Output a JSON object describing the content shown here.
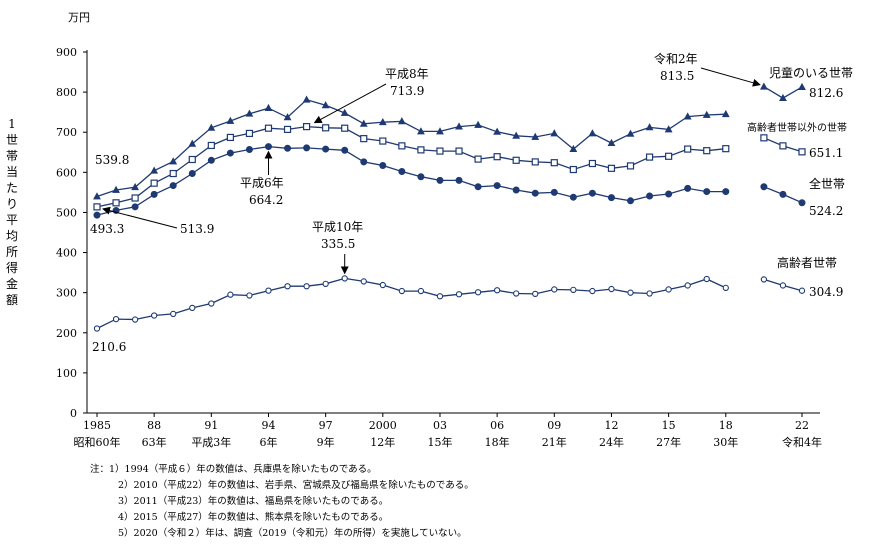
{
  "chart_data": {
    "type": "line",
    "unit_label": "万円",
    "ylabel": "1世帯当たり平均所得金額",
    "ylim": [
      0,
      900
    ],
    "yticks": [
      0,
      100,
      200,
      300,
      400,
      500,
      600,
      700,
      800,
      900
    ],
    "xlim": [
      1985,
      2022
    ],
    "xticks": [
      {
        "year": 1985,
        "top": "1985",
        "bottom": "昭和60年"
      },
      {
        "year": 1988,
        "top": "88",
        "bottom": "63年"
      },
      {
        "year": 1991,
        "top": "91",
        "bottom": "平成3年"
      },
      {
        "year": 1994,
        "top": "94",
        "bottom": "6年"
      },
      {
        "year": 1997,
        "top": "97",
        "bottom": "9年"
      },
      {
        "year": 2000,
        "top": "2000",
        "bottom": "12年"
      },
      {
        "year": 2003,
        "top": "03",
        "bottom": "15年"
      },
      {
        "year": 2006,
        "top": "06",
        "bottom": "18年"
      },
      {
        "year": 2009,
        "top": "09",
        "bottom": "21年"
      },
      {
        "year": 2012,
        "top": "12",
        "bottom": "24年"
      },
      {
        "year": 2015,
        "top": "15",
        "bottom": "27年"
      },
      {
        "year": 2018,
        "top": "18",
        "bottom": "30年"
      },
      {
        "year": 2022,
        "top": "22",
        "bottom": "令和4年"
      }
    ],
    "series": [
      {
        "name": "児童のいる世帯",
        "marker": "triangle",
        "points": [
          [
            1985,
            539.8
          ],
          [
            1986,
            556
          ],
          [
            1987,
            563
          ],
          [
            1988,
            604
          ],
          [
            1989,
            627
          ],
          [
            1990,
            671
          ],
          [
            1991,
            711
          ],
          [
            1992,
            728
          ],
          [
            1993,
            746
          ],
          [
            1994,
            760
          ],
          [
            1995,
            737
          ],
          [
            1996,
            781
          ],
          [
            1997,
            767
          ],
          [
            1998,
            748
          ],
          [
            1999,
            721
          ],
          [
            2000,
            725
          ],
          [
            2001,
            727
          ],
          [
            2002,
            702
          ],
          [
            2003,
            702
          ],
          [
            2004,
            714
          ],
          [
            2005,
            718
          ],
          [
            2006,
            701
          ],
          [
            2007,
            691
          ],
          [
            2008,
            688
          ],
          [
            2009,
            697
          ],
          [
            2010,
            658
          ],
          [
            2011,
            697
          ],
          [
            2012,
            673
          ],
          [
            2013,
            696
          ],
          [
            2014,
            712
          ],
          [
            2015,
            707
          ],
          [
            2016,
            739
          ],
          [
            2017,
            743
          ],
          [
            2018,
            745
          ],
          null,
          [
            2020,
            813.5
          ],
          [
            2021,
            785
          ],
          [
            2022,
            812.6
          ]
        ]
      },
      {
        "name": "高齢者世帯以外の世帯",
        "marker": "square",
        "points": [
          [
            1985,
            513.9
          ],
          [
            1986,
            524
          ],
          [
            1987,
            536
          ],
          [
            1988,
            573
          ],
          [
            1989,
            597
          ],
          [
            1990,
            632
          ],
          [
            1991,
            667
          ],
          [
            1992,
            687
          ],
          [
            1993,
            697
          ],
          [
            1994,
            710
          ],
          [
            1995,
            707
          ],
          [
            1996,
            714
          ],
          [
            1997,
            711
          ],
          [
            1998,
            710
          ],
          [
            1999,
            684
          ],
          [
            2000,
            678
          ],
          [
            2001,
            666
          ],
          [
            2002,
            656
          ],
          [
            2003,
            653
          ],
          [
            2004,
            653
          ],
          [
            2005,
            633
          ],
          [
            2006,
            639
          ],
          [
            2007,
            630
          ],
          [
            2008,
            626
          ],
          [
            2009,
            624
          ],
          [
            2010,
            607
          ],
          [
            2011,
            622
          ],
          [
            2012,
            610
          ],
          [
            2013,
            616
          ],
          [
            2014,
            638
          ],
          [
            2015,
            640
          ],
          [
            2016,
            658
          ],
          [
            2017,
            654
          ],
          [
            2018,
            659
          ],
          null,
          [
            2020,
            686
          ],
          [
            2021,
            666
          ],
          [
            2022,
            651.1
          ]
        ]
      },
      {
        "name": "全世帯",
        "marker": "circle-filled",
        "points": [
          [
            1985,
            493.3
          ],
          [
            1986,
            505
          ],
          [
            1987,
            514
          ],
          [
            1988,
            545
          ],
          [
            1989,
            567
          ],
          [
            1990,
            597
          ],
          [
            1991,
            630
          ],
          [
            1992,
            648
          ],
          [
            1993,
            657
          ],
          [
            1994,
            664.2
          ],
          [
            1995,
            660
          ],
          [
            1996,
            661
          ],
          [
            1997,
            658
          ],
          [
            1998,
            655
          ],
          [
            1999,
            626
          ],
          [
            2000,
            617
          ],
          [
            2001,
            602
          ],
          [
            2002,
            589
          ],
          [
            2003,
            580
          ],
          [
            2004,
            580
          ],
          [
            2005,
            564
          ],
          [
            2006,
            567
          ],
          [
            2007,
            556
          ],
          [
            2008,
            548
          ],
          [
            2009,
            550
          ],
          [
            2010,
            538
          ],
          [
            2011,
            548
          ],
          [
            2012,
            537
          ],
          [
            2013,
            529
          ],
          [
            2014,
            541
          ],
          [
            2015,
            546
          ],
          [
            2016,
            560
          ],
          [
            2017,
            552
          ],
          [
            2018,
            552
          ],
          null,
          [
            2020,
            564
          ],
          [
            2021,
            545
          ],
          [
            2022,
            524.2
          ]
        ]
      },
      {
        "name": "高齢者世帯",
        "marker": "circle-open",
        "points": [
          [
            1985,
            210.6
          ],
          [
            1986,
            234
          ],
          [
            1987,
            233
          ],
          [
            1988,
            243
          ],
          [
            1989,
            247
          ],
          [
            1990,
            262
          ],
          [
            1991,
            273
          ],
          [
            1992,
            295
          ],
          [
            1993,
            293
          ],
          [
            1994,
            305
          ],
          [
            1995,
            316
          ],
          [
            1996,
            316
          ],
          [
            1997,
            322
          ],
          [
            1998,
            335.5
          ],
          [
            1999,
            328
          ],
          [
            2000,
            319
          ],
          [
            2001,
            304
          ],
          [
            2002,
            304
          ],
          [
            2003,
            291
          ],
          [
            2004,
            296
          ],
          [
            2005,
            301
          ],
          [
            2006,
            306
          ],
          [
            2007,
            298
          ],
          [
            2008,
            297
          ],
          [
            2009,
            308
          ],
          [
            2010,
            307
          ],
          [
            2011,
            304
          ],
          [
            2012,
            309
          ],
          [
            2013,
            300
          ],
          [
            2014,
            298
          ],
          [
            2015,
            308
          ],
          [
            2016,
            318
          ],
          [
            2017,
            334
          ],
          [
            2018,
            312
          ],
          null,
          [
            2020,
            333
          ],
          [
            2021,
            318
          ],
          [
            2022,
            304.9
          ]
        ]
      }
    ],
    "annotations": {
      "v_539_8": "539.8",
      "v_493_3": "493.3",
      "v_513_9": "513.9",
      "v_210_6": "210.6",
      "h8_label": "平成8年",
      "h8_value": "713.9",
      "h6_label": "平成6年",
      "h6_value": "664.2",
      "h10_label": "平成10年",
      "h10_value": "335.5",
      "r2_label": "令和2年",
      "r2_value": "813.5",
      "end_child_value": "812.6",
      "end_nonelderly_value": "651.1",
      "end_all_value": "524.2",
      "end_elderly_value": "304.9",
      "label_child": "児童のいる世帯",
      "label_nonelderly": "高齢者世帯以外の世帯",
      "label_all": "全世帯",
      "label_elderly": "高齢者世帯"
    }
  },
  "notes": {
    "lead": "注：",
    "items": [
      "1）1994（平成６）年の数値は、兵庫県を除いたものである。",
      "2）2010（平成22）年の数値は、岩手県、宮城県及び福島県を除いたものである。",
      "3）2011（平成23）年の数値は、福島県を除いたものである。",
      "4）2015（平成27）年の数値は、熊本県を除いたものである。",
      "5）2020（令和２）年は、調査（2019（令和元）年の所得）を実施していない。"
    ]
  }
}
